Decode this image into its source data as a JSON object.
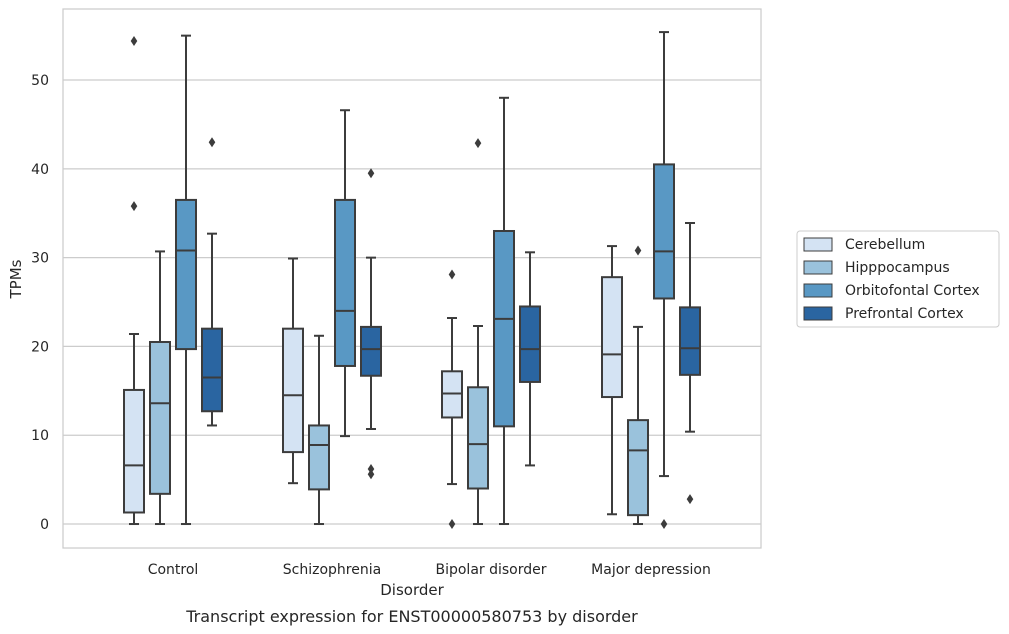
{
  "chart_data": {
    "type": "box",
    "title": "",
    "caption": "Transcript expression for ENST00000580753 by disorder",
    "xlabel": "Disorder",
    "ylabel": "TPMs",
    "ylim": [
      -2.7,
      58
    ],
    "yticks": [
      0,
      10,
      20,
      30,
      40,
      50
    ],
    "grid": "horizontal",
    "legend_position": "right",
    "categories": [
      "Control",
      "Schizophrenia",
      "Bipolar disorder",
      "Major depression"
    ],
    "series": [
      {
        "name": "Cerebellum",
        "color": "#d4e3f3",
        "boxes": [
          {
            "whisker_low": 0,
            "q1": 1.3,
            "median": 6.6,
            "q3": 15.1,
            "whisker_high": 21.4,
            "outliers": [
              35.8,
              54.4
            ]
          },
          {
            "whisker_low": 4.6,
            "q1": 8.1,
            "median": 14.5,
            "q3": 22.0,
            "whisker_high": 29.9,
            "outliers": []
          },
          {
            "whisker_low": 4.5,
            "q1": 12.0,
            "median": 14.7,
            "q3": 17.2,
            "whisker_high": 23.2,
            "outliers": [
              0,
              28.1
            ]
          },
          {
            "whisker_low": 1.1,
            "q1": 14.3,
            "median": 19.1,
            "q3": 27.8,
            "whisker_high": 31.3,
            "outliers": []
          }
        ]
      },
      {
        "name": "Hipppocampus",
        "color": "#9ac2dc",
        "boxes": [
          {
            "whisker_low": 0,
            "q1": 3.4,
            "median": 13.6,
            "q3": 20.5,
            "whisker_high": 30.7,
            "outliers": []
          },
          {
            "whisker_low": 0,
            "q1": 3.9,
            "median": 8.9,
            "q3": 11.1,
            "whisker_high": 21.2,
            "outliers": []
          },
          {
            "whisker_low": 0,
            "q1": 4.0,
            "median": 9.0,
            "q3": 15.4,
            "whisker_high": 22.3,
            "outliers": [
              42.9
            ]
          },
          {
            "whisker_low": 0,
            "q1": 1.0,
            "median": 8.3,
            "q3": 11.7,
            "whisker_high": 22.2,
            "outliers": [
              30.8
            ]
          }
        ]
      },
      {
        "name": "Orbitofontal Cortex",
        "color": "#5998c4",
        "boxes": [
          {
            "whisker_low": 0,
            "q1": 19.7,
            "median": 30.8,
            "q3": 36.5,
            "whisker_high": 55.0,
            "outliers": []
          },
          {
            "whisker_low": 9.9,
            "q1": 17.8,
            "median": 24.0,
            "q3": 36.5,
            "whisker_high": 46.6,
            "outliers": []
          },
          {
            "whisker_low": 0,
            "q1": 11.0,
            "median": 23.1,
            "q3": 33.0,
            "whisker_high": 48.0,
            "outliers": []
          },
          {
            "whisker_low": 5.4,
            "q1": 25.4,
            "median": 30.7,
            "q3": 40.5,
            "whisker_high": 55.4,
            "outliers": [
              0
            ]
          }
        ]
      },
      {
        "name": "Prefrontal Cortex",
        "color": "#2a65a1",
        "boxes": [
          {
            "whisker_low": 11.1,
            "q1": 12.7,
            "median": 16.5,
            "q3": 22.0,
            "whisker_high": 32.7,
            "outliers": [
              43.0
            ]
          },
          {
            "whisker_low": 10.7,
            "q1": 16.7,
            "median": 19.7,
            "q3": 22.2,
            "whisker_high": 30.0,
            "outliers": [
              5.6,
              6.2,
              39.5
            ]
          },
          {
            "whisker_low": 6.6,
            "q1": 16.0,
            "median": 19.7,
            "q3": 24.5,
            "whisker_high": 30.6,
            "outliers": []
          },
          {
            "whisker_low": 10.4,
            "q1": 16.8,
            "median": 19.8,
            "q3": 24.4,
            "whisker_high": 33.9,
            "outliers": [
              2.8
            ]
          }
        ]
      }
    ]
  }
}
